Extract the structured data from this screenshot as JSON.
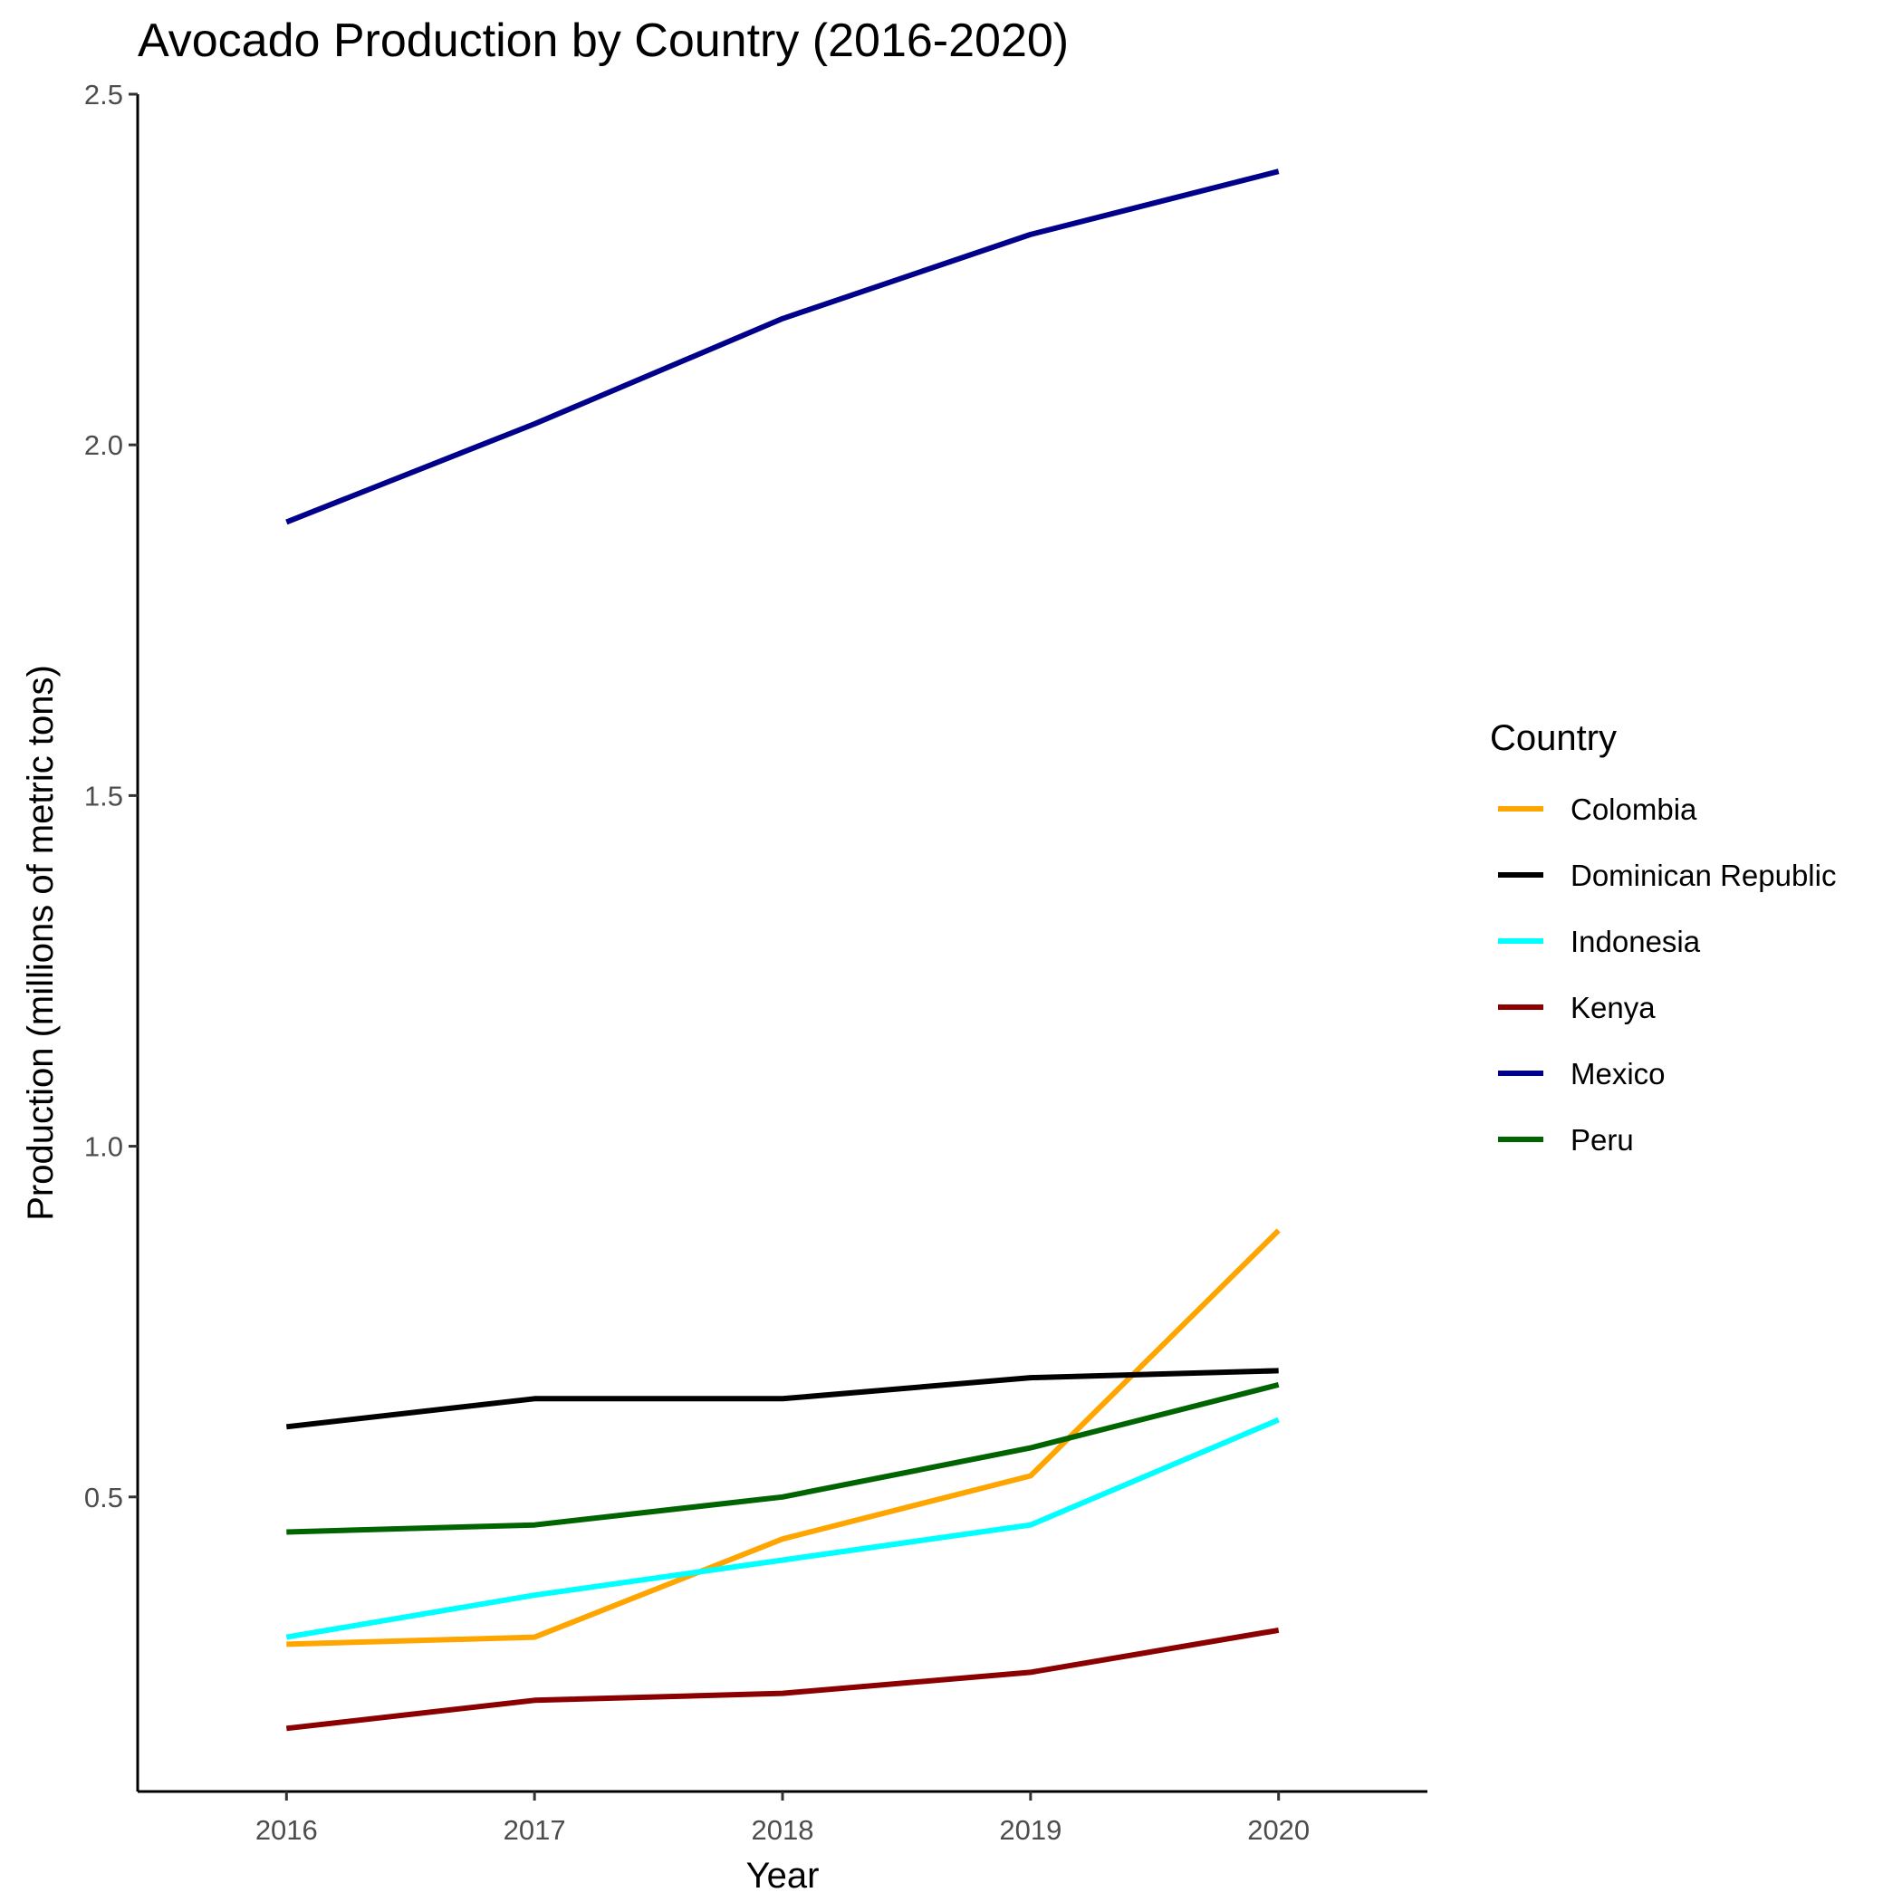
{
  "chart_data": {
    "type": "line",
    "title": "Avocado Production by Country (2016-2020)",
    "xlabel": "Year",
    "ylabel": "Production (millions of metric tons)",
    "x": [
      2016,
      2017,
      2018,
      2019,
      2020
    ],
    "xlim": [
      2015.4,
      2020.6
    ],
    "ylim": [
      0.08,
      2.5
    ],
    "yticks": [
      0.5,
      1.0,
      1.5,
      2.0,
      2.5
    ],
    "ytick_labels": [
      "0.5",
      "1.0",
      "1.5",
      "2.0",
      "2.5"
    ],
    "xtick_labels": [
      "2016",
      "2017",
      "2018",
      "2019",
      "2020"
    ],
    "grid": false,
    "legend": {
      "title": "Country",
      "placement": "right"
    },
    "series": [
      {
        "name": "Colombia",
        "color": "#FFA500",
        "values": [
          0.29,
          0.3,
          0.44,
          0.53,
          0.88
        ]
      },
      {
        "name": "Dominican Republic",
        "color": "#000000",
        "values": [
          0.6,
          0.64,
          0.64,
          0.67,
          0.68
        ]
      },
      {
        "name": "Indonesia",
        "color": "#00FFFF",
        "values": [
          0.3,
          0.36,
          0.41,
          0.46,
          0.61
        ]
      },
      {
        "name": "Kenya",
        "color": "#8B0000",
        "values": [
          0.17,
          0.21,
          0.22,
          0.25,
          0.31
        ]
      },
      {
        "name": "Mexico",
        "color": "#00008B",
        "values": [
          1.89,
          2.03,
          2.18,
          2.3,
          2.39
        ]
      },
      {
        "name": "Peru",
        "color": "#006400",
        "values": [
          0.45,
          0.46,
          0.5,
          0.57,
          0.66
        ]
      }
    ]
  }
}
